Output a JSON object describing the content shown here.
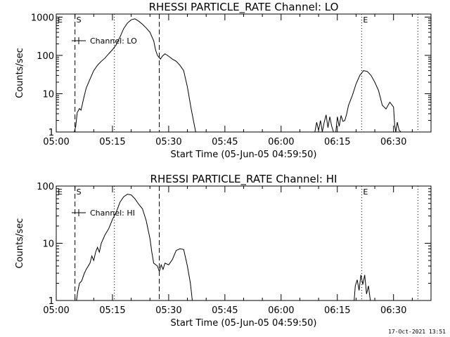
{
  "footer": {
    "timestamp": "17-Oct-2021 13:51"
  },
  "chart_data": [
    {
      "type": "line",
      "title": "RHESSI PARTICLE_RATE Channel: LO",
      "xlabel": "Start Time (05-Jun-05 04:59:50)",
      "ylabel": "Counts/sec",
      "yscale": "log",
      "ylim": [
        1,
        1200
      ],
      "xlim_min": [
        0,
        100
      ],
      "x_ticks": [
        0,
        15,
        30,
        45,
        60,
        75,
        90
      ],
      "x_tick_labels": [
        "05:00",
        "05:15",
        "05:30",
        "05:45",
        "06:00",
        "06:15",
        "06:30"
      ],
      "y_ticks": [
        1,
        10,
        100,
        1000
      ],
      "y_tick_labels": [
        "1",
        "10",
        "100",
        "1000"
      ],
      "legend": {
        "label": "Channel: LO",
        "position": "top-left"
      },
      "vlines": [
        {
          "x": 5.0,
          "style": "dashed",
          "label": "S"
        },
        {
          "x": 15.5,
          "style": "dotted",
          "label": ""
        },
        {
          "x": 27.5,
          "style": "dashed",
          "label": ""
        },
        {
          "x": 81.5,
          "style": "dotted",
          "label": "E"
        },
        {
          "x": 96.5,
          "style": "dotted",
          "label": ""
        }
      ],
      "corner_label": "E",
      "series": [
        {
          "name": "Channel: LO",
          "segments": [
            [
              [
                4.8,
                1.0
              ],
              [
                5.2,
                1.4
              ],
              [
                5.6,
                3.2
              ],
              [
                6.2,
                4.1
              ],
              [
                6.6,
                3.7
              ],
              [
                7.0,
                5.5
              ],
              [
                7.5,
                9.0
              ],
              [
                8.0,
                14
              ],
              [
                9.0,
                24
              ],
              [
                10.0,
                40
              ],
              [
                11.0,
                55
              ],
              [
                12.0,
                70
              ],
              [
                13.0,
                85
              ],
              [
                14.0,
                110
              ],
              [
                15.0,
                140
              ],
              [
                16.0,
                190
              ],
              [
                17.0,
                300
              ],
              [
                18.0,
                500
              ],
              [
                19.0,
                700
              ],
              [
                20.0,
                850
              ],
              [
                21.0,
                900
              ],
              [
                22.0,
                780
              ],
              [
                23.0,
                650
              ],
              [
                24.0,
                520
              ],
              [
                25.0,
                400
              ],
              [
                26.0,
                240
              ],
              [
                26.5,
                140
              ],
              [
                27.0,
                100
              ],
              [
                27.8,
                80
              ],
              [
                28.3,
                95
              ],
              [
                29.0,
                110
              ],
              [
                30.0,
                95
              ],
              [
                31.0,
                80
              ],
              [
                32.0,
                70
              ],
              [
                33.0,
                55
              ],
              [
                34.0,
                40
              ],
              [
                35.0,
                15
              ],
              [
                36.0,
                4
              ],
              [
                37.2,
                1.0
              ]
            ],
            [
              [
                69.0,
                1.0
              ],
              [
                69.5,
                1.8
              ],
              [
                70.0,
                1.1
              ],
              [
                70.5,
                2.0
              ],
              [
                71.0,
                1.0
              ],
              [
                71.5,
                1.8
              ],
              [
                72.0,
                2.8
              ],
              [
                72.5,
                1.3
              ],
              [
                73.0,
                2.5
              ],
              [
                73.5,
                1.4
              ],
              [
                74.0,
                1.0
              ]
            ],
            [
              [
                74.6,
                1.0
              ],
              [
                75.0,
                2.5
              ],
              [
                75.5,
                1.4
              ],
              [
                76.0,
                2.7
              ],
              [
                76.5,
                1.9
              ],
              [
                77.0,
                2.0
              ],
              [
                77.5,
                3.0
              ],
              [
                78.0,
                5.0
              ],
              [
                79.0,
                9.0
              ],
              [
                80.0,
                18
              ],
              [
                81.0,
                30
              ],
              [
                82.0,
                40
              ],
              [
                83.0,
                38
              ],
              [
                84.0,
                30
              ],
              [
                85.0,
                20
              ],
              [
                86.0,
                12
              ],
              [
                87.0,
                5.0
              ],
              [
                88.0,
                4.0
              ],
              [
                89.0,
                6.0
              ],
              [
                90.0,
                4.5
              ],
              [
                90.3,
                1.5
              ],
              [
                90.6,
                1.0
              ],
              [
                91.0,
                1.8
              ],
              [
                91.5,
                1.1
              ],
              [
                92.0,
                1.0
              ]
            ]
          ]
        }
      ]
    },
    {
      "type": "line",
      "title": "RHESSI PARTICLE_RATE Channel: HI",
      "xlabel": "Start Time (05-Jun-05 04:59:50)",
      "ylabel": "Counts/sec",
      "yscale": "log",
      "ylim": [
        1,
        100
      ],
      "xlim_min": [
        0,
        100
      ],
      "x_ticks": [
        0,
        15,
        30,
        45,
        60,
        75,
        90
      ],
      "x_tick_labels": [
        "05:00",
        "05:15",
        "05:30",
        "05:45",
        "06:00",
        "06:15",
        "06:30"
      ],
      "y_ticks": [
        1,
        10,
        100
      ],
      "y_tick_labels": [
        "1",
        "10",
        "100"
      ],
      "legend": {
        "label": "Channel: HI",
        "position": "top-left"
      },
      "vlines": [
        {
          "x": 5.0,
          "style": "dashed",
          "label": "S"
        },
        {
          "x": 15.5,
          "style": "dotted",
          "label": ""
        },
        {
          "x": 27.5,
          "style": "dashed",
          "label": ""
        },
        {
          "x": 81.5,
          "style": "dotted",
          "label": "E"
        },
        {
          "x": 96.5,
          "style": "dotted",
          "label": ""
        }
      ],
      "corner_label": "E",
      "series": [
        {
          "name": "Channel: HI",
          "segments": [
            [
              [
                5.4,
                1.0
              ],
              [
                5.7,
                1.4
              ],
              [
                6.2,
                2.0
              ],
              [
                6.8,
                2.2
              ],
              [
                7.5,
                3.0
              ],
              [
                8.0,
                3.5
              ],
              [
                9.0,
                4.5
              ],
              [
                9.5,
                6.0
              ],
              [
                10.0,
                5.0
              ],
              [
                10.5,
                7.0
              ],
              [
                11.0,
                8.5
              ],
              [
                11.5,
                7.0
              ],
              [
                12.0,
                10
              ],
              [
                13.0,
                14
              ],
              [
                14.0,
                18
              ],
              [
                15.0,
                26
              ],
              [
                16.0,
                35
              ],
              [
                17.0,
                52
              ],
              [
                18.0,
                65
              ],
              [
                19.0,
                72
              ],
              [
                20.0,
                70
              ],
              [
                21.0,
                60
              ],
              [
                22.0,
                48
              ],
              [
                23.0,
                40
              ],
              [
                24.0,
                25
              ],
              [
                25.0,
                12
              ],
              [
                25.5,
                7.0
              ],
              [
                26.0,
                4.5
              ],
              [
                27.0,
                4.0
              ],
              [
                27.5,
                3.2
              ],
              [
                28.0,
                4.2
              ],
              [
                28.5,
                3.5
              ],
              [
                29.0,
                4.5
              ],
              [
                30.0,
                4.2
              ],
              [
                31.0,
                5.2
              ],
              [
                32.0,
                7.5
              ],
              [
                33.0,
                8.0
              ],
              [
                34.0,
                7.8
              ],
              [
                35.0,
                4.0
              ],
              [
                35.8,
                2.0
              ],
              [
                36.3,
                1.0
              ]
            ],
            [
              [
                79.5,
                1.0
              ],
              [
                79.8,
                1.8
              ],
              [
                80.3,
                2.3
              ],
              [
                80.8,
                1.5
              ],
              [
                81.3,
                2.8
              ],
              [
                81.8,
                1.9
              ],
              [
                82.3,
                2.8
              ],
              [
                82.8,
                1.3
              ],
              [
                83.3,
                1.8
              ],
              [
                83.8,
                1.0
              ]
            ]
          ]
        }
      ]
    }
  ]
}
